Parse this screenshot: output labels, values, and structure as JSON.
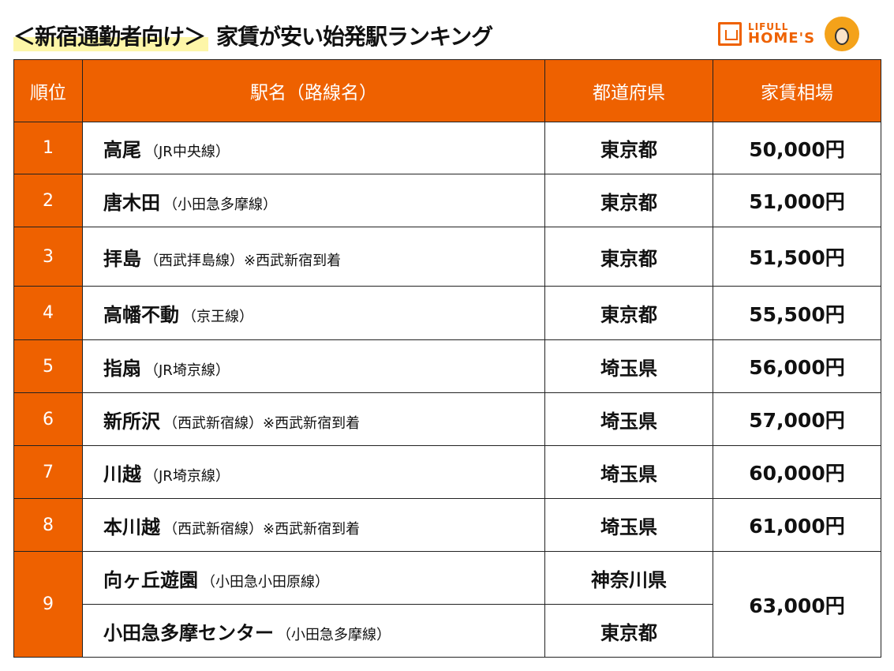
{
  "title": {
    "highlight": "＜新宿通勤者向け＞",
    "main": "家賃が安い始発駅ランキング"
  },
  "logo": {
    "line1": "LIFULL",
    "line2": "HOME'S",
    "color": "#ee6100"
  },
  "colors": {
    "accent": "#ee6100",
    "highlight": "#fdf6a8"
  },
  "table": {
    "headers": [
      "順位",
      "駅名（路線名）",
      "都道府県",
      "家賃相場"
    ],
    "rows": [
      {
        "rank": "1",
        "station": "高尾",
        "line": "（JR中央線）",
        "note": "",
        "pref": "東京都",
        "rent": "50,000円"
      },
      {
        "rank": "2",
        "station": "唐木田",
        "line": "（小田急多摩線）",
        "note": "",
        "pref": "東京都",
        "rent": "51,000円"
      },
      {
        "rank": "3",
        "station": "拝島",
        "line": "（西武拝島線）",
        "note": "※西武新宿到着",
        "pref": "東京都",
        "rent": "51,500円"
      },
      {
        "rank": "4",
        "station": "高幡不動",
        "line": "（京王線）",
        "note": "",
        "pref": "東京都",
        "rent": "55,500円"
      },
      {
        "rank": "5",
        "station": "指扇",
        "line": "（JR埼京線）",
        "note": "",
        "pref": "埼玉県",
        "rent": "56,000円"
      },
      {
        "rank": "6",
        "station": "新所沢",
        "line": "（西武新宿線）",
        "note": "※西武新宿到着",
        "pref": "埼玉県",
        "rent": "57,000円"
      },
      {
        "rank": "7",
        "station": "川越",
        "line": "（JR埼京線）",
        "note": "",
        "pref": "埼玉県",
        "rent": "60,000円"
      },
      {
        "rank": "8",
        "station": "本川越",
        "line": "（西武新宿線）",
        "note": "※西武新宿到着",
        "pref": "埼玉県",
        "rent": "61,000円"
      },
      {
        "rank": "9",
        "station": "向ヶ丘遊園",
        "line": "（小田急小田原線）",
        "note": "",
        "pref": "神奈川県",
        "rent": "63,000円"
      },
      {
        "rank": "",
        "station": "小田急多摩センター",
        "line": "（小田急多摩線）",
        "note": "",
        "pref": "東京都",
        "rent": ""
      }
    ]
  }
}
